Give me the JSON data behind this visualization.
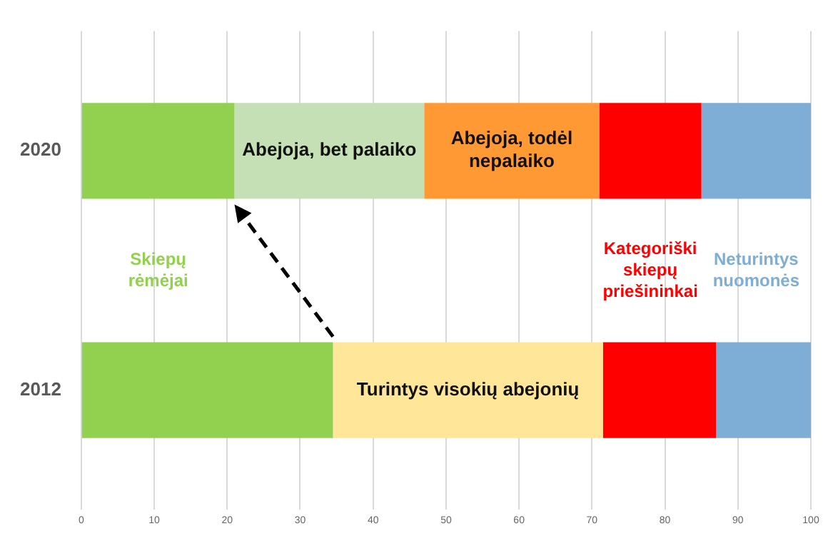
{
  "chart_data": {
    "type": "bar",
    "orientation": "horizontal",
    "stacked": true,
    "categories": [
      "2020",
      "2012"
    ],
    "xlim": [
      0,
      100
    ],
    "xticks": [
      0,
      10,
      20,
      30,
      40,
      50,
      60,
      70,
      80,
      90,
      100
    ],
    "grid": "x",
    "legend": false,
    "series": [
      {
        "name": "Skiepų rėmėjai",
        "color": "#92d050",
        "values": [
          21,
          34.5
        ]
      },
      {
        "name": "Abejoja, bet palaiko",
        "color": "#c5e0b4",
        "values": [
          26,
          null
        ]
      },
      {
        "name": "Abejoja, todėl nepalaiko",
        "color": "#ff9933",
        "values": [
          24,
          null
        ]
      },
      {
        "name": "Turintys visokių abejonių",
        "color": "#ffe699",
        "values": [
          null,
          37
        ]
      },
      {
        "name": "Kategoriški skiepų priešininkai",
        "color": "#ff0000",
        "values": [
          14,
          15.5
        ]
      },
      {
        "name": "Neturintys nuomonės",
        "color": "#7eaed6",
        "values": [
          15,
          13
        ]
      }
    ]
  }
}
